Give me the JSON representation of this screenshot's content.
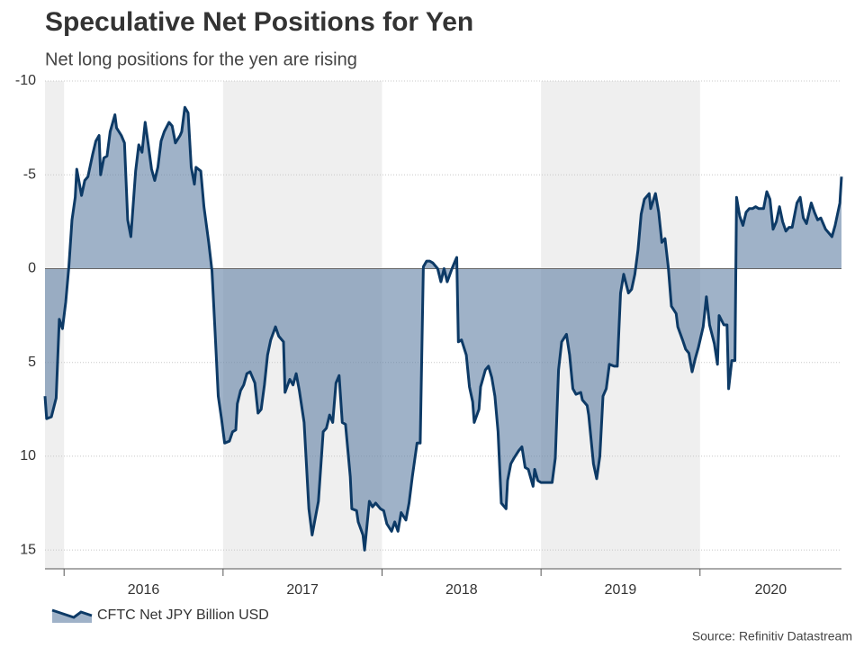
{
  "chart_data": {
    "type": "area",
    "title": "Speculative Net Positions for Yen",
    "subtitle": "Net long positions for the yen are rising",
    "source": "Source: Refinitiv Datastream",
    "inverted_y": true,
    "ylim": [
      -10,
      16
    ],
    "yticks": [
      -10,
      -5,
      0,
      5,
      10,
      15
    ],
    "xlim": [
      2015.88,
      2020.89
    ],
    "xticks": [
      2016,
      2017,
      2018,
      2019,
      2020
    ],
    "grid": true,
    "legend": "bottom-left",
    "series": [
      {
        "name": "CFTC Net JPY Billion USD",
        "color": "#0d3a66",
        "fill": "#5f7fa3",
        "x": [
          2015.88,
          2015.89,
          2015.92,
          2015.95,
          2015.97,
          2015.99,
          2016.01,
          2016.03,
          2016.05,
          2016.07,
          2016.08,
          2016.11,
          2016.13,
          2016.15,
          2016.18,
          2016.2,
          2016.22,
          2016.23,
          2016.25,
          2016.27,
          2016.29,
          2016.32,
          2016.33,
          2016.36,
          2016.38,
          2016.4,
          2016.42,
          2016.45,
          2016.47,
          2016.49,
          2016.51,
          2016.53,
          2016.55,
          2016.57,
          2016.59,
          2016.61,
          2016.63,
          2016.66,
          2016.68,
          2016.7,
          2016.73,
          2016.74,
          2016.76,
          2016.78,
          2016.8,
          2016.82,
          2016.83,
          2016.86,
          2016.88,
          2016.91,
          2016.93,
          2016.95,
          2016.97,
          2016.99,
          2017.01,
          2017.04,
          2017.06,
          2017.08,
          2017.09,
          2017.11,
          2017.13,
          2017.15,
          2017.17,
          2017.2,
          2017.22,
          2017.24,
          2017.26,
          2017.28,
          2017.3,
          2017.33,
          2017.35,
          2017.38,
          2017.39,
          2017.42,
          2017.44,
          2017.46,
          2017.48,
          2017.51,
          2017.54,
          2017.56,
          2017.58,
          2017.6,
          2017.63,
          2017.65,
          2017.67,
          2017.69,
          2017.71,
          2017.73,
          2017.75,
          2017.77,
          2017.8,
          2017.81,
          2017.84,
          2017.85,
          2017.88,
          2017.89,
          2017.92,
          2017.94,
          2017.96,
          2017.99,
          2018.01,
          2018.03,
          2018.06,
          2018.08,
          2018.1,
          2018.12,
          2018.15,
          2018.17,
          2018.19,
          2018.22,
          2018.24,
          2018.26,
          2018.28,
          2018.3,
          2018.32,
          2018.35,
          2018.37,
          2018.39,
          2018.41,
          2018.44,
          2018.46,
          2018.47,
          2018.48,
          2018.5,
          2018.53,
          2018.55,
          2018.57,
          2018.58,
          2018.61,
          2018.62,
          2018.65,
          2018.67,
          2018.69,
          2018.71,
          2018.73,
          2018.75,
          2018.78,
          2018.79,
          2018.81,
          2018.83,
          2018.86,
          2018.88,
          2018.9,
          2018.92,
          2018.95,
          2018.96,
          2018.98,
          2019.0,
          2019.03,
          2019.05,
          2019.07,
          2019.09,
          2019.11,
          2019.13,
          2019.16,
          2019.18,
          2019.2,
          2019.22,
          2019.25,
          2019.26,
          2019.29,
          2019.3,
          2019.33,
          2019.35,
          2019.37,
          2019.39,
          2019.41,
          2019.43,
          2019.46,
          2019.48,
          2019.5,
          2019.52,
          2019.55,
          2019.57,
          2019.59,
          2019.61,
          2019.63,
          2019.65,
          2019.68,
          2019.69,
          2019.72,
          2019.74,
          2019.76,
          2019.78,
          2019.8,
          2019.82,
          2019.85,
          2019.86,
          2019.89,
          2019.91,
          2019.93,
          2019.95,
          2019.97,
          2019.99,
          2020.02,
          2020.04,
          2020.06,
          2020.09,
          2020.11,
          2020.12,
          2020.15,
          2020.17,
          2020.18,
          2020.2,
          2020.22,
          2020.23,
          2020.25,
          2020.27,
          2020.29,
          2020.31,
          2020.33,
          2020.35,
          2020.37,
          2020.4,
          2020.42,
          2020.44,
          2020.46,
          2020.48,
          2020.5,
          2020.52,
          2020.54,
          2020.56,
          2020.58,
          2020.61,
          2020.63,
          2020.65,
          2020.67,
          2020.7,
          2020.72,
          2020.74,
          2020.76,
          2020.79,
          2020.81,
          2020.83,
          2020.85,
          2020.88,
          2020.89
        ],
        "values": [
          6.8,
          8.0,
          7.9,
          6.9,
          2.7,
          3.2,
          1.8,
          -0.1,
          -2.6,
          -3.8,
          -5.3,
          -3.9,
          -4.7,
          -4.9,
          -6.1,
          -6.8,
          -7.1,
          -5.0,
          -5.9,
          -6.0,
          -7.3,
          -8.2,
          -7.5,
          -7.1,
          -6.7,
          -2.6,
          -1.7,
          -5.2,
          -6.6,
          -6.2,
          -7.8,
          -6.6,
          -5.3,
          -4.7,
          -5.4,
          -6.8,
          -7.3,
          -7.8,
          -7.6,
          -6.7,
          -7.1,
          -7.3,
          -8.6,
          -8.3,
          -5.4,
          -4.5,
          -5.4,
          -5.2,
          -3.3,
          -1.4,
          0.1,
          3.4,
          6.8,
          8.0,
          9.3,
          9.2,
          8.7,
          8.6,
          7.2,
          6.5,
          6.2,
          5.6,
          5.5,
          6.1,
          7.7,
          7.5,
          6.2,
          4.6,
          3.8,
          3.1,
          3.6,
          3.9,
          6.6,
          5.9,
          6.2,
          5.6,
          6.5,
          8.2,
          12.8,
          14.2,
          13.3,
          12.4,
          8.7,
          8.5,
          7.8,
          8.2,
          6.1,
          5.7,
          8.2,
          8.3,
          11.1,
          12.8,
          12.9,
          13.5,
          14.2,
          15.0,
          12.4,
          12.7,
          12.5,
          12.8,
          12.9,
          13.6,
          14.0,
          13.5,
          14.0,
          13.0,
          13.4,
          12.5,
          11.1,
          9.3,
          9.3,
          -0.1,
          -0.4,
          -0.4,
          -0.3,
          0.0,
          0.7,
          0.0,
          0.7,
          0.0,
          -0.4,
          -0.6,
          3.9,
          3.8,
          4.6,
          6.3,
          7.1,
          8.2,
          7.5,
          6.3,
          5.4,
          5.2,
          5.8,
          6.8,
          8.7,
          12.5,
          12.8,
          11.3,
          10.4,
          10.1,
          9.7,
          9.5,
          10.6,
          10.7,
          11.6,
          10.7,
          11.3,
          11.4,
          11.4,
          11.4,
          11.4,
          10.1,
          5.4,
          3.9,
          3.5,
          4.6,
          6.4,
          6.7,
          6.6,
          7.0,
          7.3,
          7.8,
          10.4,
          11.2,
          10.0,
          6.8,
          6.4,
          5.1,
          5.2,
          5.2,
          1.3,
          0.3,
          1.3,
          1.1,
          0.3,
          -1.0,
          -2.9,
          -3.7,
          -4.0,
          -3.2,
          -4.0,
          -3.0,
          -1.4,
          -1.6,
          -0.1,
          2.0,
          2.4,
          3.1,
          3.8,
          4.3,
          4.5,
          5.5,
          4.8,
          4.2,
          3.1,
          1.5,
          3.0,
          4.0,
          5.1,
          2.5,
          3.0,
          3.0,
          6.4,
          4.9,
          4.9,
          -3.8,
          -2.8,
          -2.3,
          -3.0,
          -3.2,
          -3.2,
          -3.3,
          -3.2,
          -3.2,
          -4.1,
          -3.7,
          -2.1,
          -2.5,
          -3.3,
          -2.5,
          -2.0,
          -2.2,
          -2.2,
          -3.5,
          -3.8,
          -2.7,
          -2.4,
          -3.5,
          -3.0,
          -2.6,
          -2.7,
          -2.1,
          -1.9,
          -1.7,
          -2.3,
          -3.5,
          -4.9
        ]
      }
    ]
  }
}
